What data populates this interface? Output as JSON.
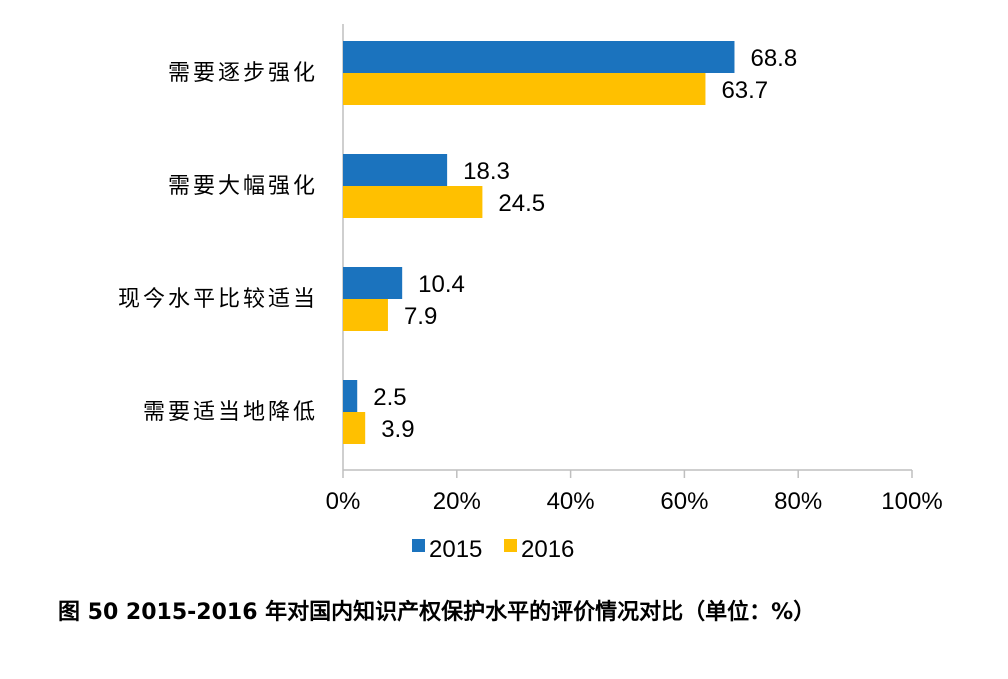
{
  "chart_data": {
    "type": "bar",
    "orientation": "horizontal",
    "categories": [
      "需要逐步强化",
      "需要大幅强化",
      "现今水平比较适当",
      "需要适当地降低"
    ],
    "series": [
      {
        "name": "2015",
        "color": "#1B73BE",
        "values": [
          68.8,
          18.3,
          10.4,
          2.5
        ],
        "labels": [
          "68.8",
          "18.3",
          "10.4",
          "2.5"
        ]
      },
      {
        "name": "2016",
        "color": "#FFC000",
        "values": [
          63.7,
          24.5,
          7.9,
          3.9
        ],
        "labels": [
          "63.7",
          "24.5",
          "7.9",
          "3.9"
        ]
      }
    ],
    "xlim": [
      0,
      100
    ],
    "xticks": [
      0,
      20,
      40,
      60,
      80,
      100
    ],
    "xtick_labels": [
      "0%",
      "20%",
      "40%",
      "60%",
      "80%",
      "100%"
    ],
    "legend_position": "bottom",
    "grid": false
  },
  "caption": "图 50 2015-2016 年对国内知识产权保护水平的评价情况对比（单位：%）"
}
